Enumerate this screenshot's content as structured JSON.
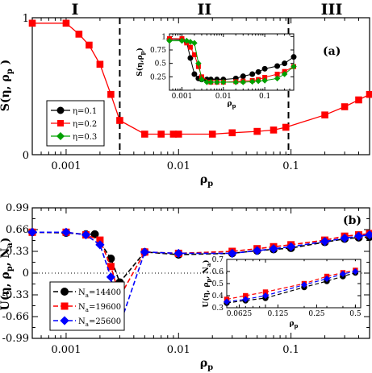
{
  "chart_data": [
    {
      "id": "panel-a",
      "type": "line",
      "panel_label": "(a)",
      "x_scale": "log",
      "xlim": [
        0.0005,
        0.5
      ],
      "ylim": [
        0,
        1
      ],
      "xlabel": "ρ",
      "xlabel_sub": "p",
      "ylabel": "S(η, ρ",
      "ylabel_sub": "p",
      "ylabel_close": " )",
      "x_ticks": [
        0.001,
        0.01,
        0.1
      ],
      "x_tick_labels": [
        "0.001",
        "0.01",
        "0.1"
      ],
      "y_ticks": [
        0,
        1
      ],
      "y_tick_labels": [
        "0",
        "1"
      ],
      "regions": [
        {
          "label": "I",
          "x": 0.0012
        },
        {
          "label": "II",
          "x": 0.017
        },
        {
          "label": "III",
          "x": 0.23
        }
      ],
      "dashed_lines_x": [
        0.003,
        0.095
      ],
      "series": [
        {
          "name": "η=0.2",
          "color": "#ff0000",
          "marker": "square",
          "x": [
            0.0005,
            0.001,
            0.0013,
            0.0016,
            0.002,
            0.0025,
            0.003,
            0.005,
            0.007,
            0.009,
            0.01,
            0.02,
            0.03,
            0.05,
            0.07,
            0.09,
            0.2,
            0.3,
            0.4,
            0.5
          ],
          "y": [
            0.96,
            0.96,
            0.88,
            0.8,
            0.66,
            0.44,
            0.25,
            0.15,
            0.15,
            0.15,
            0.15,
            0.15,
            0.16,
            0.17,
            0.18,
            0.2,
            0.29,
            0.35,
            0.4,
            0.44
          ]
        }
      ],
      "inset": {
        "x_scale": "log",
        "xlim": [
          0.0005,
          0.5
        ],
        "ylim": [
          0,
          1.05
        ],
        "xlabel": "ρ",
        "xlabel_sub": "p",
        "ylabel": "S(η,ρ",
        "ylabel_sub": "p",
        "ylabel_close": ")",
        "x_ticks": [
          0.001,
          0.01,
          0.1
        ],
        "x_tick_labels": [
          "0.001",
          "0.01",
          "0.1"
        ],
        "y_ticks": [
          0.25,
          0.5,
          0.75,
          1
        ],
        "y_tick_labels": [
          "0.25",
          "0.5",
          "0.75",
          "1"
        ],
        "series": [
          {
            "name": "η=0.1",
            "color": "#000000",
            "marker": "circle",
            "x": [
              0.0005,
              0.001,
              0.0013,
              0.0016,
              0.002,
              0.0025,
              0.003,
              0.004,
              0.005,
              0.007,
              0.01,
              0.02,
              0.03,
              0.05,
              0.07,
              0.1,
              0.2,
              0.3,
              0.5
            ],
            "y": [
              0.95,
              0.94,
              0.9,
              0.6,
              0.3,
              0.22,
              0.2,
              0.2,
              0.2,
              0.2,
              0.2,
              0.22,
              0.26,
              0.3,
              0.34,
              0.4,
              0.45,
              0.5,
              0.62
            ]
          },
          {
            "name": "η=0.2",
            "color": "#ff0000",
            "marker": "square",
            "x": [
              0.0005,
              0.001,
              0.0013,
              0.0016,
              0.002,
              0.0025,
              0.003,
              0.005,
              0.007,
              0.01,
              0.02,
              0.03,
              0.05,
              0.07,
              0.1,
              0.2,
              0.3,
              0.5
            ],
            "y": [
              0.96,
              0.96,
              0.88,
              0.8,
              0.66,
              0.44,
              0.25,
              0.15,
              0.15,
              0.15,
              0.16,
              0.17,
              0.18,
              0.2,
              0.24,
              0.3,
              0.35,
              0.44
            ]
          },
          {
            "name": "η=0.3",
            "color": "#00a000",
            "marker": "diamond",
            "x": [
              0.0005,
              0.001,
              0.0013,
              0.0016,
              0.002,
              0.0025,
              0.003,
              0.004,
              0.005,
              0.007,
              0.01,
              0.02,
              0.03,
              0.05,
              0.07,
              0.1,
              0.2,
              0.3,
              0.5
            ],
            "y": [
              0.92,
              0.92,
              0.92,
              0.9,
              0.88,
              0.5,
              0.2,
              0.15,
              0.15,
              0.15,
              0.15,
              0.15,
              0.15,
              0.16,
              0.17,
              0.18,
              0.22,
              0.3,
              0.44
            ]
          }
        ]
      },
      "legend": {
        "placement": "lower-left",
        "entries": [
          {
            "label": "η=0.1",
            "color": "#000000",
            "marker": "circle"
          },
          {
            "label": "η=0.2",
            "color": "#ff0000",
            "marker": "square"
          },
          {
            "label": "η=0.3",
            "color": "#00a000",
            "marker": "diamond"
          }
        ]
      }
    },
    {
      "id": "panel-b",
      "type": "line",
      "panel_label": "(b)",
      "x_scale": "log",
      "xlim": [
        0.0005,
        0.5
      ],
      "ylim": [
        -0.99,
        0.99
      ],
      "xlabel": "ρ",
      "xlabel_sub": "p",
      "ylabel": "U(η, ρ",
      "ylabel_sub": "p",
      "ylabel_mid": ", N",
      "ylabel_sub2": "a",
      "ylabel_close": ")",
      "x_ticks": [
        0.001,
        0.01,
        0.1
      ],
      "x_tick_labels": [
        "0.001",
        "0.01",
        "0.1"
      ],
      "y_ticks": [
        -0.99,
        -0.66,
        -0.33,
        0,
        0.33,
        0.66,
        0.99
      ],
      "y_tick_labels": [
        "-0.99",
        "-0.66",
        "-0.33",
        "0",
        "0.33",
        "0.66",
        "0.99"
      ],
      "series": [
        {
          "name": "Na=14400",
          "color": "#000000",
          "marker": "circle",
          "x": [
            0.0005,
            0.001,
            0.0015,
            0.0018,
            0.0025,
            0.003,
            0.005,
            0.01,
            0.03,
            0.05,
            0.07,
            0.1,
            0.2,
            0.3,
            0.4,
            0.5
          ],
          "y": [
            0.62,
            0.61,
            0.59,
            0.59,
            0.22,
            -0.14,
            0.32,
            0.28,
            0.3,
            0.34,
            0.36,
            0.38,
            0.47,
            0.52,
            0.54,
            0.55
          ]
        },
        {
          "name": "Na=19600",
          "color": "#ff0000",
          "marker": "square",
          "x": [
            0.0005,
            0.001,
            0.0015,
            0.002,
            0.0025,
            0.003,
            0.005,
            0.01,
            0.03,
            0.05,
            0.07,
            0.1,
            0.2,
            0.3,
            0.4,
            0.5
          ],
          "y": [
            0.62,
            0.62,
            0.58,
            0.5,
            0.1,
            -0.36,
            0.32,
            0.3,
            0.33,
            0.37,
            0.4,
            0.43,
            0.5,
            0.56,
            0.58,
            0.6
          ]
        },
        {
          "name": "Na=25600",
          "color": "#0000ff",
          "marker": "diamond",
          "x": [
            0.0005,
            0.001,
            0.0015,
            0.002,
            0.0025,
            0.003,
            0.005,
            0.01,
            0.03,
            0.05,
            0.07,
            0.1,
            0.2,
            0.3,
            0.4,
            0.5
          ],
          "y": [
            0.62,
            0.62,
            0.58,
            0.43,
            -0.06,
            -0.79,
            0.32,
            0.3,
            0.3,
            0.34,
            0.37,
            0.4,
            0.48,
            0.53,
            0.56,
            0.58
          ]
        }
      ],
      "inset": {
        "x_scale": "log",
        "xlim": [
          0.05,
          0.55
        ],
        "ylim": [
          0.3,
          0.7
        ],
        "xlabel": "ρ",
        "xlabel_sub": "p",
        "ylabel": "U(η, ρ",
        "ylabel_sub": "p",
        "ylabel_mid": ", N",
        "ylabel_sub2": "a",
        "ylabel_close": ")",
        "x_ticks": [
          0.0625,
          0.125,
          0.25,
          0.5
        ],
        "x_tick_labels": [
          "0.0625",
          "0.125",
          "0.25",
          "0.5"
        ],
        "y_ticks": [
          0.3,
          0.4,
          0.5,
          0.6,
          0.7
        ],
        "y_tick_labels": [
          "0.3",
          "0.4",
          "0.5",
          "0.6",
          "0.7"
        ],
        "series": [
          {
            "name": "Na=14400",
            "color": "#000000",
            "marker": "circle",
            "x": [
              0.05,
              0.07,
              0.1,
              0.2,
              0.3,
              0.4,
              0.5
            ],
            "y": [
              0.34,
              0.36,
              0.38,
              0.47,
              0.52,
              0.56,
              0.59
            ]
          },
          {
            "name": "Na=19600",
            "color": "#ff0000",
            "marker": "square",
            "x": [
              0.05,
              0.07,
              0.1,
              0.2,
              0.3,
              0.4,
              0.5
            ],
            "y": [
              0.37,
              0.4,
              0.43,
              0.5,
              0.56,
              0.59,
              0.61
            ]
          },
          {
            "name": "Na=25600",
            "color": "#0000ff",
            "marker": "diamond",
            "x": [
              0.05,
              0.07,
              0.1,
              0.2,
              0.3,
              0.4,
              0.5
            ],
            "y": [
              0.35,
              0.37,
              0.4,
              0.49,
              0.54,
              0.58,
              0.6
            ]
          }
        ]
      },
      "legend": {
        "placement": "lower-left",
        "entries": [
          {
            "label_main": "N",
            "label_sub": "a",
            "label_rest": "=14400",
            "color": "#000000",
            "marker": "circle"
          },
          {
            "label_main": "N",
            "label_sub": "a",
            "label_rest": "=19600",
            "color": "#ff0000",
            "marker": "square"
          },
          {
            "label_main": "N",
            "label_sub": "a",
            "label_rest": "=25600",
            "color": "#0000ff",
            "marker": "diamond"
          }
        ]
      }
    }
  ]
}
